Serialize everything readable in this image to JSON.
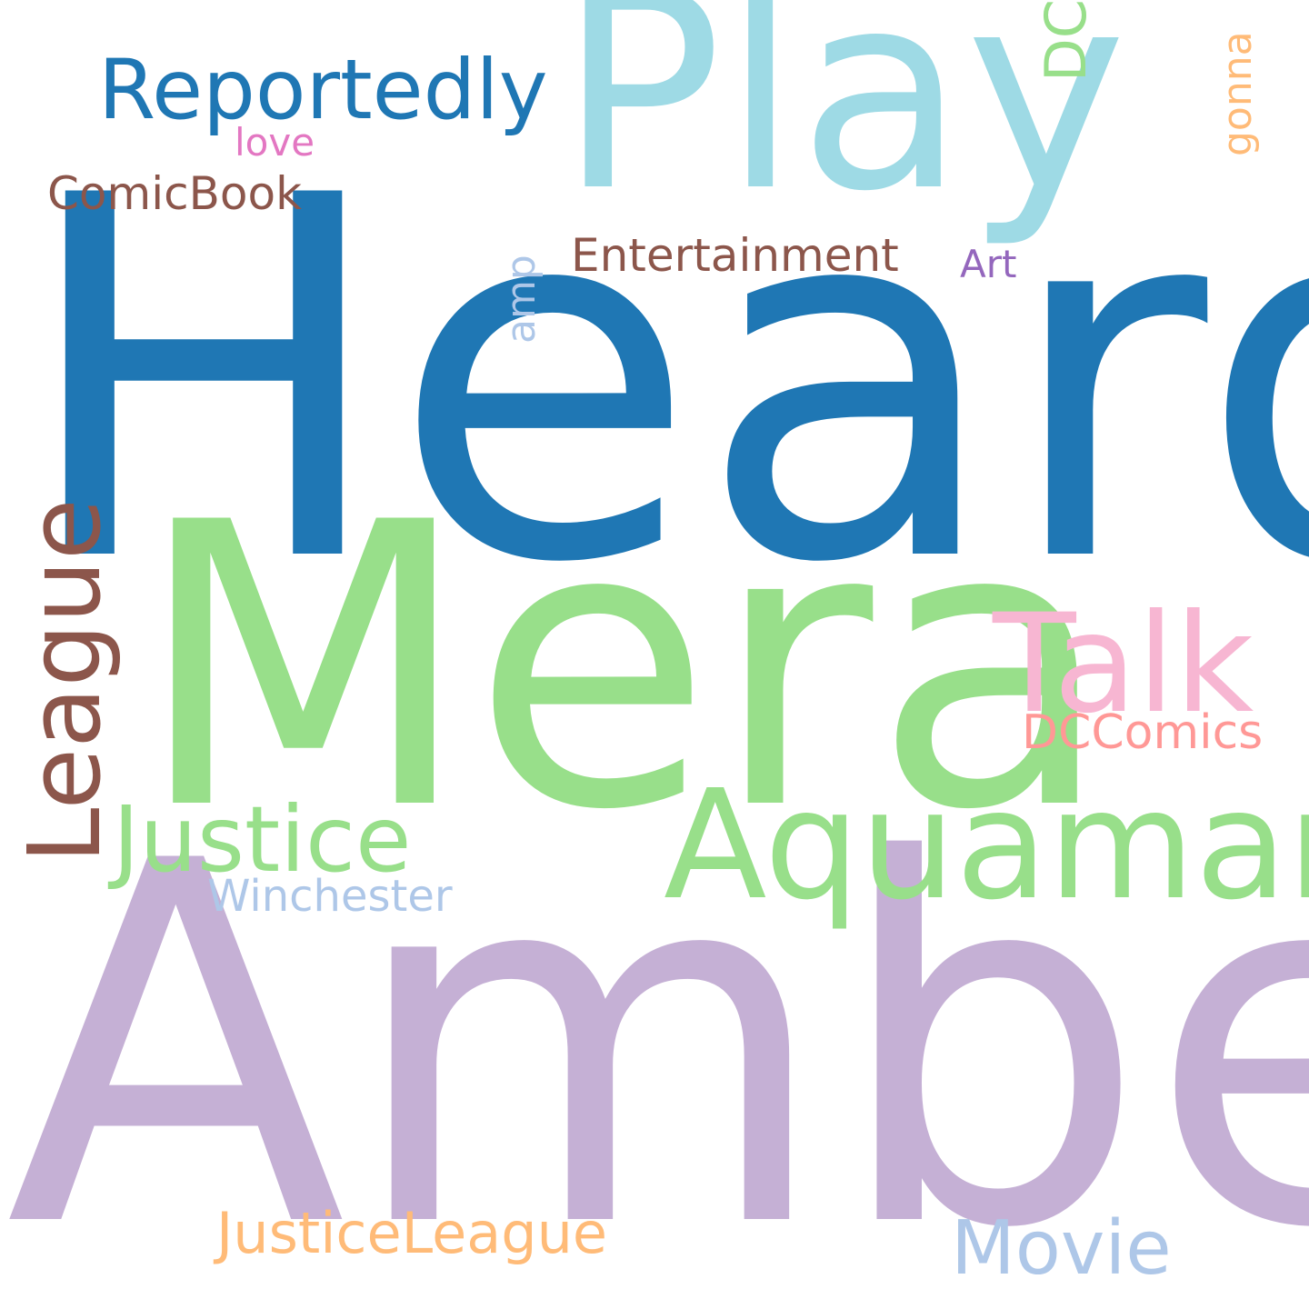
{
  "words": {
    "heard": {
      "text": "Heard",
      "color": "#1f77b4"
    },
    "amber": {
      "text": "Amber",
      "color": "#c5b0d5"
    },
    "mera": {
      "text": "Mera",
      "color": "#98df8a"
    },
    "play": {
      "text": "Play",
      "color": "#9edae5"
    },
    "aquaman": {
      "text": "Aquaman",
      "color": "#98df8a"
    },
    "talk": {
      "text": "Talk",
      "color": "#f7b6d2"
    },
    "reportedly": {
      "text": "Reportedly",
      "color": "#1f77b4"
    },
    "justice": {
      "text": "Justice",
      "color": "#98df8a"
    },
    "league": {
      "text": "League",
      "color": "#8c564b"
    },
    "movie": {
      "text": "Movie",
      "color": "#aec7e8"
    },
    "justiceleague": {
      "text": "JusticeLeague",
      "color": "#ffbb78"
    },
    "entertainment": {
      "text": "Entertainment",
      "color": "#8c564b"
    },
    "dccomics": {
      "text": "DCComics",
      "color": "#ff9896"
    },
    "comicbook": {
      "text": "ComicBook",
      "color": "#8c564b"
    },
    "dc": {
      "text": "DC",
      "color": "#98df8a"
    },
    "winchester": {
      "text": "Winchester",
      "color": "#aec7e8"
    },
    "amp": {
      "text": "amp",
      "color": "#aec7e8"
    },
    "gonna": {
      "text": "gonna",
      "color": "#ffbb78"
    },
    "art": {
      "text": "Art",
      "color": "#9467bd"
    },
    "love": {
      "text": "love",
      "color": "#e377c2"
    }
  }
}
